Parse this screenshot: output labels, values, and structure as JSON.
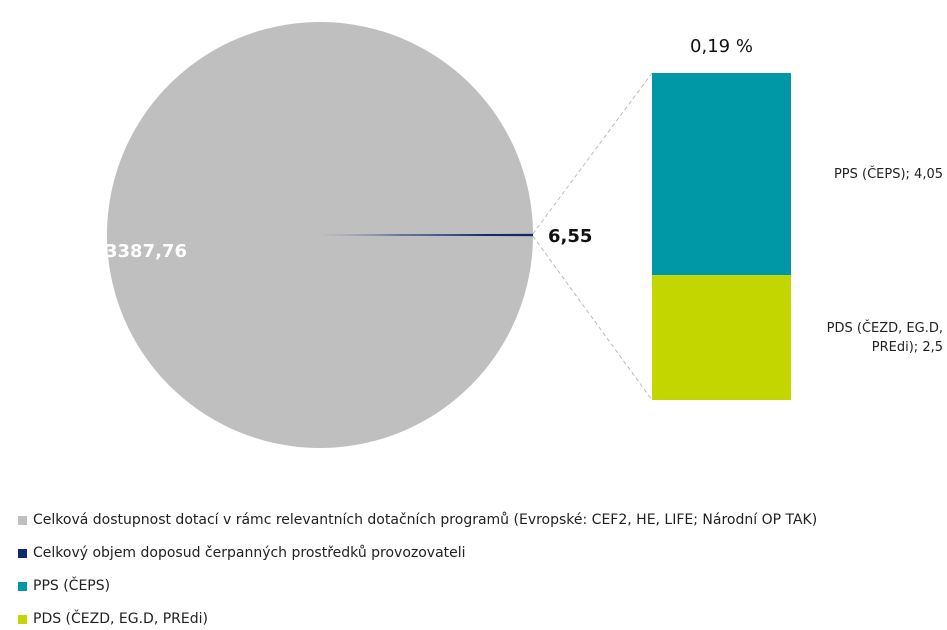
{
  "chart_data": {
    "type": "pie-of-bar",
    "pie": {
      "categories": [
        "Celková dostupnost dotací v rámc relevantních dotačních programů (Evropské: CEF2, HE, LIFE; Národní OP TAK)",
        "Celkový objem doposud čerpanných prostředků provozovateli"
      ],
      "values": [
        3387.76,
        6.55
      ],
      "value_labels": [
        "3387,76",
        "6,55"
      ],
      "colors": [
        "#bfbfbf",
        "#0f2b6b"
      ]
    },
    "bar": {
      "categories": [
        "PPS (ČEPS)",
        "PDS (ČEZD, EG.D, PREdi)"
      ],
      "values": [
        4.05,
        2.5
      ],
      "value_labels": [
        "PPS (ČEPS); 4,05",
        "PDS (ČEZD, EG.D, PREdi); 2,5"
      ],
      "colors": [
        "#0097a7",
        "#c4d600"
      ],
      "total": {
        "value": 0.19,
        "label": "0,19 %"
      }
    },
    "legend": "bottom"
  }
}
